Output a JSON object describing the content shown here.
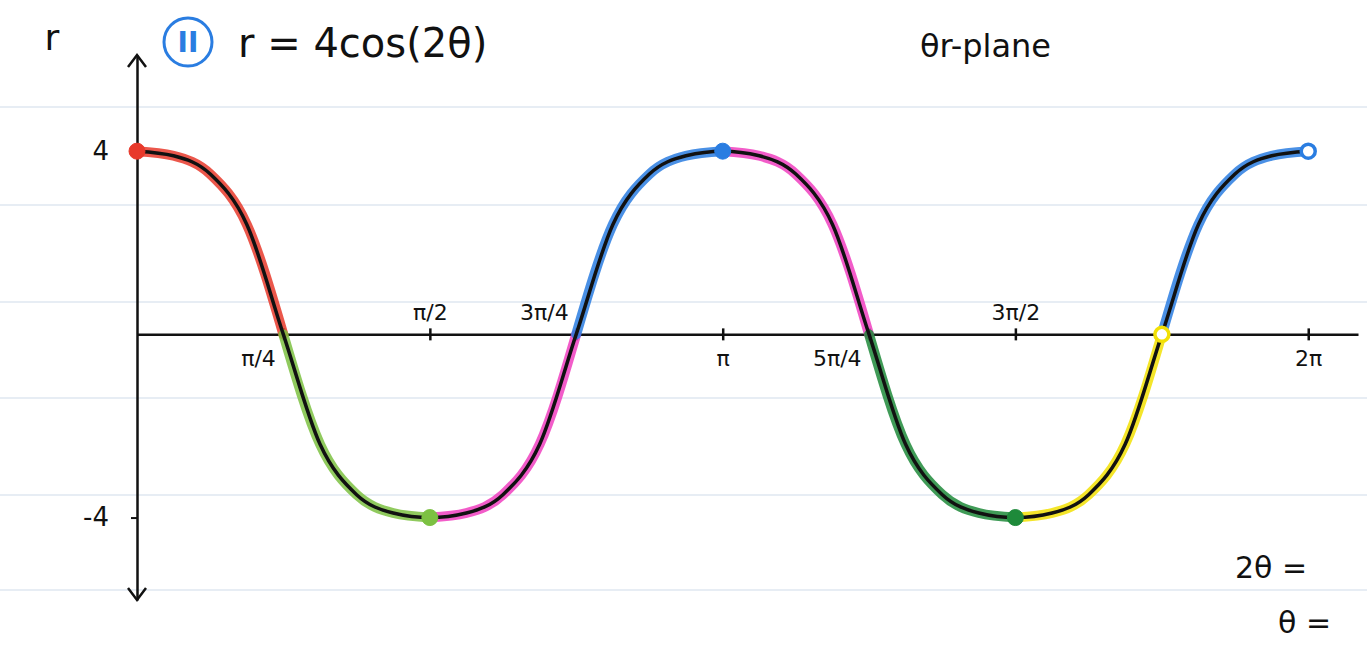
{
  "chart_data": {
    "type": "line",
    "label": "II",
    "title": "r = 4cos(2θ)",
    "y_label": "r",
    "annotations": [
      "θr-plane",
      "2θ =",
      "θ ="
    ],
    "x": [
      0,
      0.196,
      0.393,
      0.589,
      0.785,
      0.982,
      1.178,
      1.374,
      1.571,
      1.767,
      1.963,
      2.16,
      2.356,
      2.553,
      2.749,
      2.945,
      3.142,
      3.338,
      3.534,
      3.731,
      3.927,
      4.123,
      4.32,
      4.516,
      4.712,
      4.909,
      5.105,
      5.301,
      5.498,
      5.694,
      5.89,
      6.087,
      6.283
    ],
    "xlim": [
      0,
      6.55
    ],
    "xticks": [
      {
        "value": 0.785,
        "label": "π/4"
      },
      {
        "value": 1.571,
        "label": "π/2"
      },
      {
        "value": 2.356,
        "label": "3π/4"
      },
      {
        "value": 3.142,
        "label": "π"
      },
      {
        "value": 3.927,
        "label": "5π/4"
      },
      {
        "value": 4.712,
        "label": "3π/2"
      },
      {
        "value": 6.283,
        "label": "2π"
      }
    ],
    "ylim": [
      -5.8,
      6.1
    ],
    "yticks": [
      -4,
      4
    ],
    "grid": false,
    "series": [
      {
        "type": "line",
        "color": "#111111",
        "values": [
          4,
          3.9,
          3.5,
          2.4,
          0,
          -2.4,
          -3.5,
          -3.9,
          -4,
          -3.9,
          -3.5,
          -2.4,
          0,
          2.4,
          3.5,
          3.9,
          4,
          3.9,
          3.5,
          2.4,
          0,
          -2.4,
          -3.5,
          -3.9,
          -4,
          -3.9,
          -3.5,
          -2.4,
          0,
          2.4,
          3.5,
          3.9,
          4
        ]
      },
      {
        "type": "line",
        "color": "#e8392b",
        "values": [
          4,
          3.9,
          3.5,
          2.4,
          0,
          null,
          null,
          null,
          null,
          null,
          null,
          null,
          null,
          null,
          null,
          null,
          null,
          null,
          null,
          null,
          null,
          null,
          null,
          null,
          null,
          null,
          null,
          null,
          null,
          null,
          null,
          null,
          null
        ]
      },
      {
        "type": "line",
        "color": "#7cc142",
        "values": [
          null,
          null,
          null,
          null,
          0,
          -2.4,
          -3.5,
          -3.9,
          -4,
          null,
          null,
          null,
          null,
          null,
          null,
          null,
          null,
          null,
          null,
          null,
          null,
          null,
          null,
          null,
          null,
          null,
          null,
          null,
          null,
          null,
          null,
          null,
          null
        ]
      },
      {
        "type": "line",
        "color": "#f03fbf",
        "values": [
          null,
          null,
          null,
          null,
          null,
          null,
          null,
          null,
          -4,
          -3.9,
          -3.5,
          -2.4,
          0,
          null,
          null,
          null,
          4,
          3.9,
          3.5,
          2.4,
          0,
          null,
          null,
          null,
          null,
          null,
          null,
          null,
          null,
          null,
          null,
          null,
          null
        ]
      },
      {
        "type": "line",
        "color": "#2a7de1",
        "values": [
          null,
          null,
          null,
          null,
          null,
          null,
          null,
          null,
          null,
          null,
          null,
          null,
          0,
          2.4,
          3.5,
          3.9,
          4,
          null,
          null,
          null,
          null,
          null,
          null,
          null,
          null,
          null,
          null,
          null,
          0,
          2.4,
          3.5,
          3.9,
          4
        ]
      },
      {
        "type": "line",
        "color": "#1e8a3a",
        "values": [
          null,
          null,
          null,
          null,
          null,
          null,
          null,
          null,
          null,
          null,
          null,
          null,
          null,
          null,
          null,
          null,
          null,
          null,
          null,
          null,
          0,
          -2.4,
          -3.5,
          -3.9,
          -4,
          null,
          null,
          null,
          null,
          null,
          null,
          null,
          null
        ]
      },
      {
        "type": "line",
        "color": "#f2e005",
        "values": [
          null,
          null,
          null,
          null,
          null,
          null,
          null,
          null,
          null,
          null,
          null,
          null,
          null,
          null,
          null,
          null,
          null,
          null,
          null,
          null,
          null,
          null,
          null,
          null,
          -4,
          -3.9,
          -3.5,
          -2.4,
          0,
          null,
          null,
          null,
          null
        ]
      },
      {
        "type": "scatter",
        "marker": "circle",
        "x": [
          0,
          1.571,
          3.142,
          4.712
        ],
        "values": [
          4,
          -4,
          4,
          -4
        ],
        "colors": [
          "#e8392b",
          "#7cc142",
          "#2a7de1",
          "#1e8a3a"
        ]
      },
      {
        "type": "scatter",
        "marker": "open-circle",
        "x": [
          5.498,
          6.283
        ],
        "values": [
          0,
          4
        ],
        "colors": [
          "#f2e005",
          "#2a7de1"
        ]
      }
    ]
  }
}
